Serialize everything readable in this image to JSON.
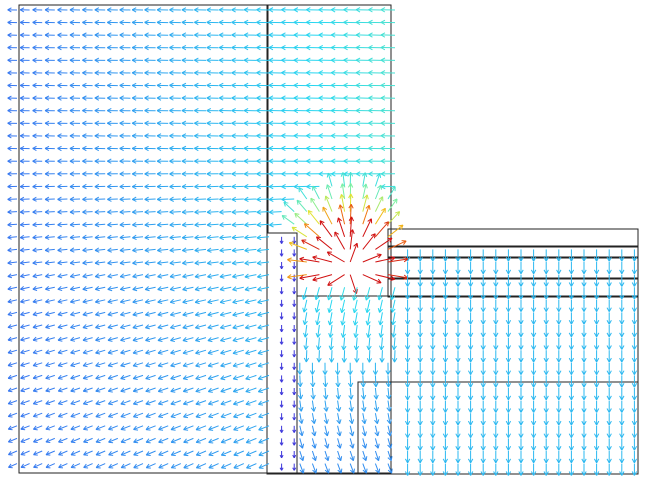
{
  "figure": {
    "kind": "vector-field",
    "background": "#ffffff",
    "outline_color": "#222222",
    "colormap": [
      "#3b1fd0",
      "#3c5ff0",
      "#2f9ef0",
      "#27d8f0",
      "#7cf0a0",
      "#f0e020",
      "#f07010",
      "#d01010"
    ]
  }
}
